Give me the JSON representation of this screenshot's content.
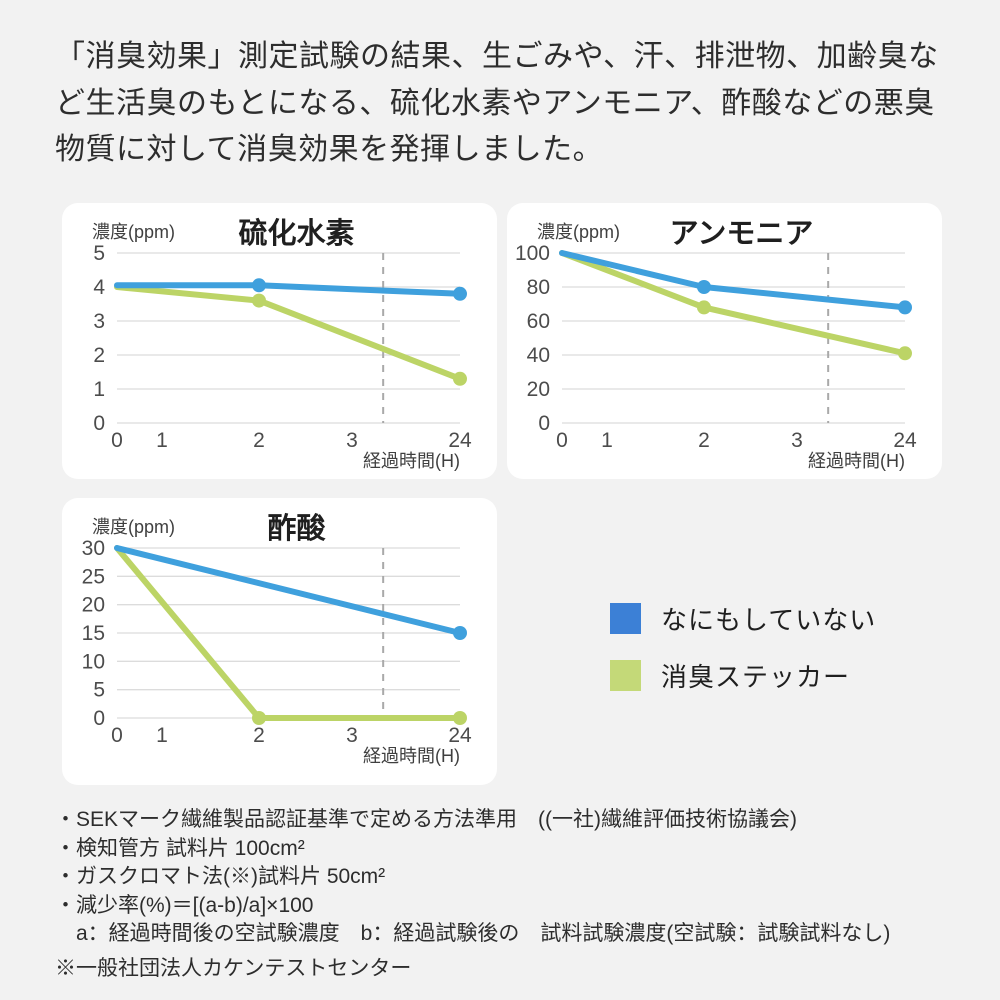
{
  "page": {
    "bg_color": "#f2f2f2",
    "card_bg_color": "#ffffff"
  },
  "header": {
    "text": "「消臭効果」測定試験の結果、生ごみや、汗、排泄物、加齢臭など生活臭のもとになる、硫化水素やアンモニア、酢酸などの悪臭物質に対して消臭効果を発揮しました。"
  },
  "colors": {
    "grid": "#dcdcdc",
    "dashed_line": "#a9a9a9",
    "line_blue": "#3fa0dd",
    "line_green": "#bcd466",
    "legend_blue": "#3c80d6",
    "legend_green": "#c4d978"
  },
  "legend": {
    "items": [
      {
        "label": "なにもしていない",
        "color": "#3c80d6"
      },
      {
        "label": "消臭ステッカー",
        "color": "#c4d978"
      }
    ]
  },
  "chart_data": [
    {
      "type": "line",
      "title": "硫化水素",
      "ylabel": "濃度(ppm)",
      "xlabel": "経過時間(H)",
      "x_ticks": [
        "0",
        "1",
        "2",
        "3",
        "24"
      ],
      "x_hours": [
        0,
        1,
        2,
        3,
        24
      ],
      "x_positions": [
        0,
        0.131,
        0.414,
        0.685,
        1
      ],
      "y_ticks": [
        0,
        1,
        2,
        3,
        4,
        5
      ],
      "ylim": [
        0,
        5
      ],
      "grid": true,
      "dashed_x_position": 0.776,
      "series": [
        {
          "name": "なにもしていない",
          "color": "#3fa0dd",
          "points": [
            [
              0,
              4.05
            ],
            [
              2,
              4.05
            ],
            [
              24,
              3.8
            ]
          ],
          "marker_hours": [
            2,
            24
          ]
        },
        {
          "name": "消臭ステッカー",
          "color": "#bcd466",
          "points": [
            [
              0,
              4.0
            ],
            [
              2,
              3.6
            ],
            [
              24,
              1.3
            ]
          ],
          "marker_hours": [
            2,
            24
          ]
        }
      ]
    },
    {
      "type": "line",
      "title": "アンモニア",
      "ylabel": "濃度(ppm)",
      "xlabel": "経過時間(H)",
      "x_ticks": [
        "0",
        "1",
        "2",
        "3",
        "24"
      ],
      "x_hours": [
        0,
        1,
        2,
        3,
        24
      ],
      "x_positions": [
        0,
        0.131,
        0.414,
        0.685,
        1
      ],
      "y_ticks": [
        0,
        20,
        40,
        60,
        80,
        100
      ],
      "ylim": [
        0,
        100
      ],
      "grid": true,
      "dashed_x_position": 0.776,
      "series": [
        {
          "name": "なにもしていない",
          "color": "#3fa0dd",
          "points": [
            [
              0,
              100
            ],
            [
              2,
              80
            ],
            [
              24,
              68
            ]
          ],
          "marker_hours": [
            2,
            24
          ]
        },
        {
          "name": "消臭ステッカー",
          "color": "#bcd466",
          "points": [
            [
              0,
              100
            ],
            [
              2,
              68
            ],
            [
              24,
              41
            ]
          ],
          "marker_hours": [
            2,
            24
          ]
        }
      ]
    },
    {
      "type": "line",
      "title": "酢酸",
      "ylabel": "濃度(ppm)",
      "xlabel": "経過時間(H)",
      "x_ticks": [
        "0",
        "1",
        "2",
        "3",
        "24"
      ],
      "x_hours": [
        0,
        1,
        2,
        3,
        24
      ],
      "x_positions": [
        0,
        0.131,
        0.414,
        0.685,
        1
      ],
      "y_ticks": [
        0,
        5,
        10,
        15,
        20,
        25,
        30
      ],
      "ylim": [
        0,
        30
      ],
      "grid": true,
      "dashed_x_position": 0.776,
      "series": [
        {
          "name": "なにもしていない",
          "color": "#3fa0dd",
          "points": [
            [
              0,
              30
            ],
            [
              24,
              15
            ]
          ],
          "marker_hours": [
            24
          ]
        },
        {
          "name": "消臭ステッカー",
          "color": "#bcd466",
          "points": [
            [
              0,
              30
            ],
            [
              2,
              0
            ],
            [
              24,
              0
            ]
          ],
          "marker_hours": [
            2,
            24
          ]
        }
      ]
    }
  ],
  "footnotes": {
    "lines": [
      "・SEKマーク繊維製品認証基準で定める方法準用　((一社)繊維評価技術協議会)",
      "・検知管方 試料片 100cm²",
      "・ガスクロマト法(※)試料片 50cm²",
      "・減少率(%)＝[(a-b)/a]×100",
      "　a：経過時間後の空試験濃度　b：経過試験後の　試料試験濃度(空試験：試験試料なし)"
    ],
    "note": "※一般社団法人カケンテストセンター"
  }
}
